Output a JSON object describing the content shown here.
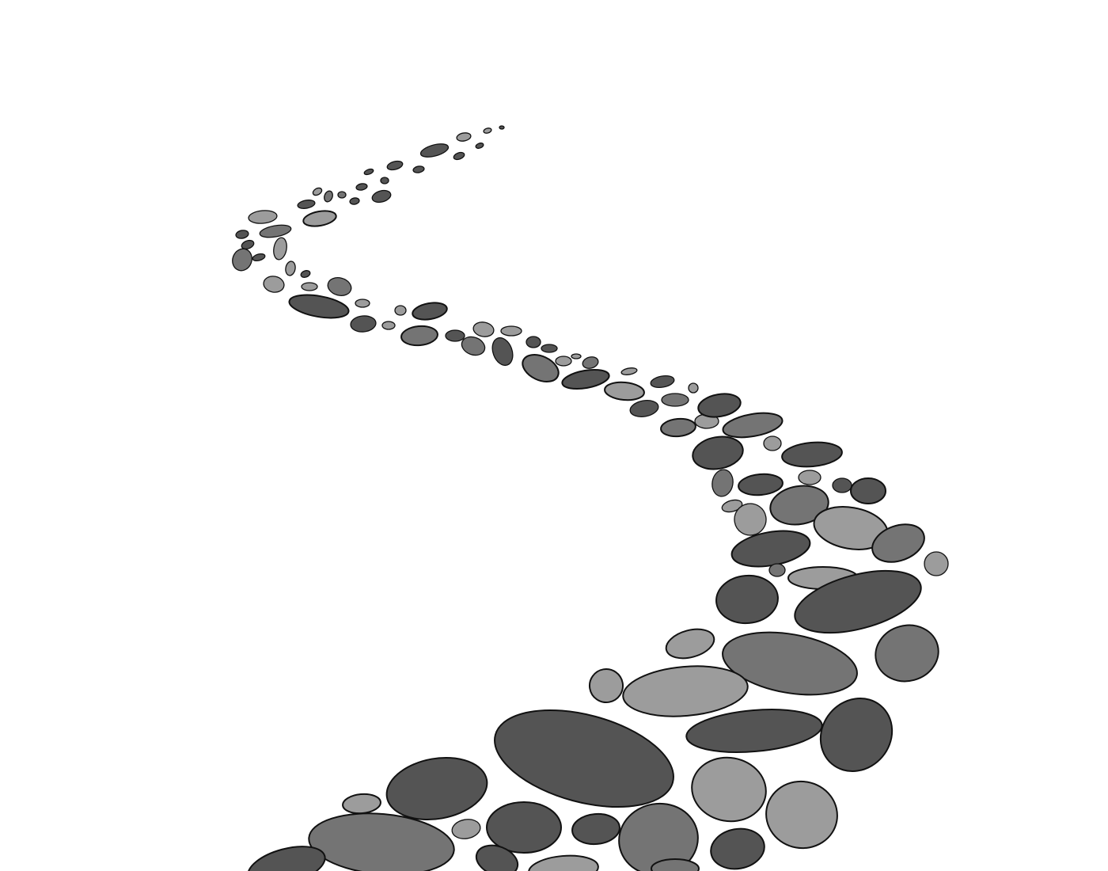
{
  "scene": {
    "subject": "stone-path",
    "background_color": "#ffffff",
    "outline_color": "#111111",
    "stone_colors": {
      "dark": "#545454",
      "mid": "#747474",
      "light": "#9c9c9c"
    }
  }
}
